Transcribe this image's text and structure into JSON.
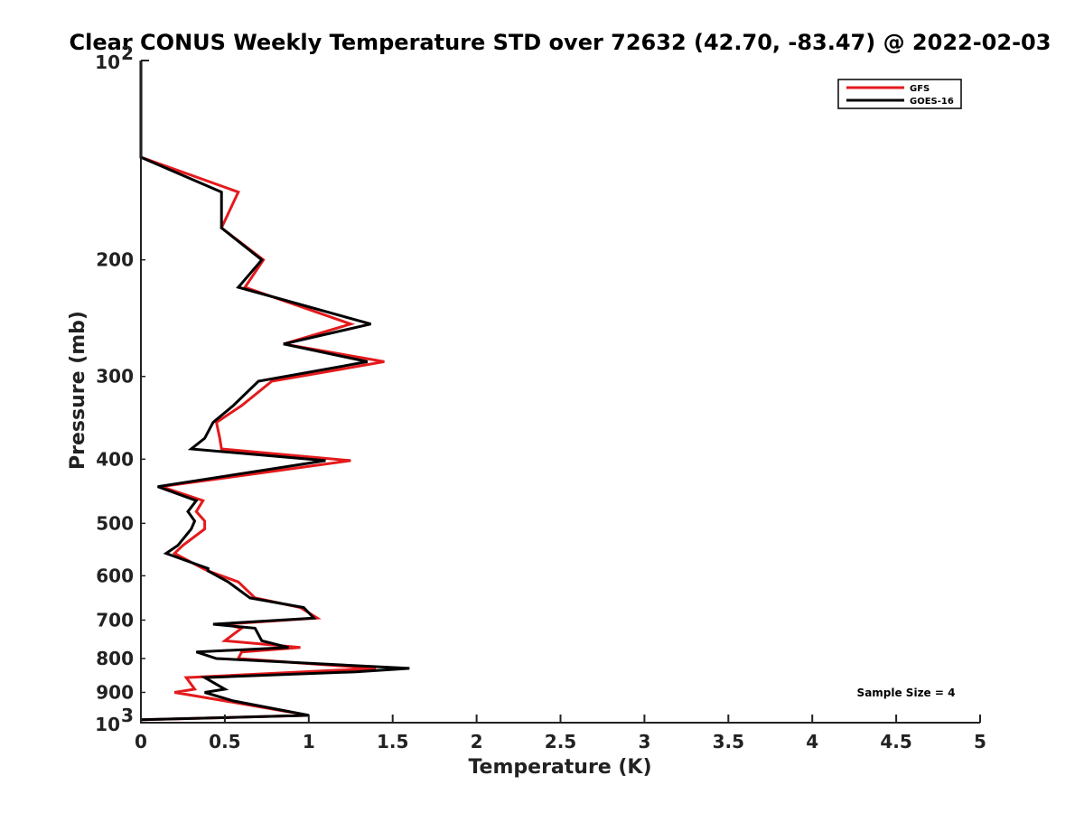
{
  "chart_data": {
    "type": "line",
    "title": "Clear CONUS Weekly Temperature STD over 72632 (42.70, -83.47) @ 2022-02-03",
    "xlabel": "Temperature (K)",
    "ylabel": "Pressure (mb)",
    "xlim": [
      0,
      5
    ],
    "ylim": [
      1000,
      100
    ],
    "yscale": "log",
    "y_reversed": true,
    "x_ticks": [
      "0",
      "0.5",
      "1",
      "1.5",
      "2",
      "2.5",
      "3",
      "3.5",
      "4",
      "4.5",
      "5"
    ],
    "y_ticks": [
      {
        "value": 200,
        "label": "200"
      },
      {
        "value": 300,
        "label": "300"
      },
      {
        "value": 400,
        "label": "400"
      },
      {
        "value": 500,
        "label": "500"
      },
      {
        "value": 600,
        "label": "600"
      },
      {
        "value": 700,
        "label": "700"
      },
      {
        "value": 800,
        "label": "800"
      },
      {
        "value": 900,
        "label": "900"
      }
    ],
    "y_end_labels": [
      {
        "value": 100,
        "base": "10",
        "exp": "2"
      },
      {
        "value": 1000,
        "base": "10",
        "exp": "3"
      }
    ],
    "legend_position": "top-right",
    "grid": false,
    "annotation": "Sample Size = 4",
    "series": [
      {
        "name": "GFS",
        "color": "#e41a1c",
        "points": [
          [
            0,
            100
          ],
          [
            0,
            140
          ],
          [
            0.58,
            158
          ],
          [
            0.48,
            179
          ],
          [
            0.73,
            200
          ],
          [
            0.62,
            220
          ],
          [
            1.25,
            250
          ],
          [
            0.85,
            268
          ],
          [
            1.45,
            285
          ],
          [
            0.78,
            305
          ],
          [
            0.6,
            332
          ],
          [
            0.45,
            352
          ],
          [
            0.47,
            372
          ],
          [
            0.48,
            386
          ],
          [
            1.25,
            402
          ],
          [
            0.12,
            440
          ],
          [
            0.37,
            462
          ],
          [
            0.33,
            480
          ],
          [
            0.38,
            496
          ],
          [
            0.38,
            510
          ],
          [
            0.25,
            540
          ],
          [
            0.2,
            555
          ],
          [
            0.37,
            585
          ],
          [
            0.4,
            590
          ],
          [
            0.58,
            613
          ],
          [
            0.68,
            648
          ],
          [
            0.95,
            670
          ],
          [
            1.05,
            695
          ],
          [
            0.5,
            710
          ],
          [
            0.6,
            720
          ],
          [
            0.5,
            752
          ],
          [
            0.95,
            770
          ],
          [
            0.6,
            782
          ],
          [
            0.58,
            800
          ],
          [
            1.4,
            828
          ],
          [
            0.27,
            855
          ],
          [
            0.32,
            890
          ],
          [
            0.2,
            900
          ],
          [
            0.5,
            927
          ],
          [
            1.0,
            975
          ],
          [
            0,
            990
          ]
        ]
      },
      {
        "name": "GOES-16",
        "color": "#000000",
        "points": [
          [
            0,
            100
          ],
          [
            0,
            140
          ],
          [
            0.48,
            158
          ],
          [
            0.48,
            179
          ],
          [
            0.72,
            200
          ],
          [
            0.58,
            220
          ],
          [
            1.37,
            250
          ],
          [
            0.85,
            268
          ],
          [
            1.35,
            285
          ],
          [
            0.7,
            305
          ],
          [
            0.55,
            332
          ],
          [
            0.43,
            352
          ],
          [
            0.38,
            372
          ],
          [
            0.3,
            386
          ],
          [
            1.1,
            402
          ],
          [
            0.1,
            440
          ],
          [
            0.33,
            462
          ],
          [
            0.28,
            480
          ],
          [
            0.32,
            496
          ],
          [
            0.3,
            510
          ],
          [
            0.22,
            540
          ],
          [
            0.15,
            555
          ],
          [
            0.4,
            585
          ],
          [
            0.4,
            590
          ],
          [
            0.52,
            613
          ],
          [
            0.65,
            648
          ],
          [
            0.97,
            670
          ],
          [
            1.03,
            695
          ],
          [
            0.43,
            710
          ],
          [
            0.68,
            720
          ],
          [
            0.72,
            752
          ],
          [
            0.88,
            770
          ],
          [
            0.33,
            782
          ],
          [
            0.45,
            800
          ],
          [
            1.6,
            828
          ],
          [
            1.28,
            838
          ],
          [
            0.38,
            855
          ],
          [
            0.5,
            890
          ],
          [
            0.38,
            900
          ],
          [
            0.55,
            927
          ],
          [
            1.0,
            975
          ],
          [
            0,
            990
          ]
        ]
      }
    ]
  }
}
